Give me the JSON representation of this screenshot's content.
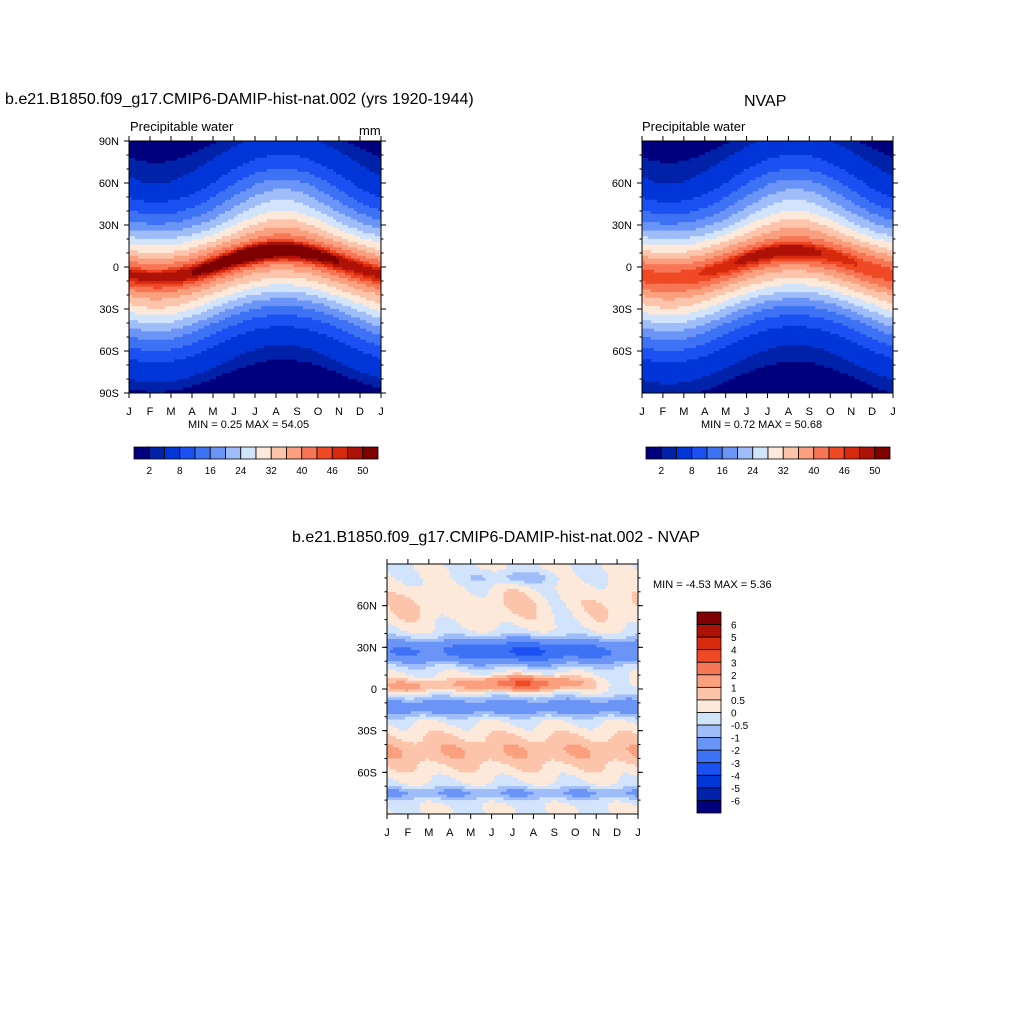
{
  "figure": {
    "panel1_title": "b.e21.B1850.f09_g17.CMIP6-DAMIP-hist-nat.002 (yrs 1920-1944)",
    "panel1_left_label": "Precipitable water",
    "panel1_right_label": "mm",
    "panel1_minmax": "MIN =   0.25 MAX =  54.05",
    "panel2_title": "NVAP",
    "panel2_left_label": "Precipitable water",
    "panel2_minmax": "MIN =   0.72 MAX =  50.68",
    "panel3_title": "b.e21.B1850.f09_g17.CMIP6-DAMIP-hist-nat.002 - NVAP",
    "panel3_minmax": "MIN =  -4.53 MAX =   5.36"
  },
  "colors": {
    "abs_scale": [
      "#00007f",
      "#0022a8",
      "#0035d8",
      "#1b50f2",
      "#3e72f5",
      "#6b94f7",
      "#9fbdf9",
      "#d2e3fc",
      "#fde9d9",
      "#fcc5ab",
      "#faa07f",
      "#f77656",
      "#ef4a25",
      "#d6290e",
      "#ae1206",
      "#7f0000"
    ],
    "diff_scale": [
      "#00007f",
      "#0022a8",
      "#0035d8",
      "#1b50f2",
      "#3e72f5",
      "#6b94f7",
      "#9fbdf9",
      "#d2e3fc",
      "#fde9d9",
      "#fcc5ab",
      "#faa07f",
      "#f77656",
      "#ef4a25",
      "#d6290e",
      "#ae1206",
      "#7f0000"
    ]
  },
  "chart_data": [
    {
      "type": "heatmap",
      "title": "b.e21.B1850.f09_g17.CMIP6-DAMIP-hist-nat.002 (yrs 1920-1944)",
      "subtitle": "Precipitable water",
      "units": "mm",
      "x_ticks": [
        "J",
        "F",
        "M",
        "A",
        "M",
        "J",
        "J",
        "A",
        "S",
        "O",
        "N",
        "D",
        "J"
      ],
      "y_ticks": [
        "90N",
        "60N",
        "30N",
        "0",
        "30S",
        "60S",
        "90S"
      ],
      "ylim": [
        -90,
        90
      ],
      "min": 0.25,
      "max": 54.05,
      "colorbar_labels": [
        "2",
        "8",
        "16",
        "24",
        "32",
        "40",
        "46",
        "50"
      ],
      "levels": [
        2,
        4,
        8,
        12,
        16,
        20,
        24,
        28,
        32,
        36,
        40,
        44,
        46,
        48,
        50
      ],
      "lat_profile": [
        [
          90,
          2
        ],
        [
          80,
          4
        ],
        [
          70,
          6
        ],
        [
          60,
          9
        ],
        [
          50,
          13
        ],
        [
          40,
          18
        ],
        [
          30,
          24
        ],
        [
          20,
          32
        ],
        [
          10,
          42
        ],
        [
          5,
          48
        ],
        [
          0,
          48
        ],
        [
          -5,
          44
        ],
        [
          -10,
          38
        ],
        [
          -20,
          30
        ],
        [
          -30,
          22
        ],
        [
          -40,
          15
        ],
        [
          -50,
          10
        ],
        [
          -60,
          6
        ],
        [
          -70,
          4
        ],
        [
          -80,
          1.5
        ],
        [
          -90,
          0.5
        ]
      ]
    },
    {
      "type": "heatmap",
      "title": "NVAP",
      "subtitle": "Precipitable water",
      "x_ticks": [
        "J",
        "F",
        "M",
        "A",
        "M",
        "J",
        "J",
        "A",
        "S",
        "O",
        "N",
        "D",
        "J"
      ],
      "y_ticks": [
        "60N",
        "30N",
        "0",
        "30S",
        "60S"
      ],
      "ylim": [
        -90,
        90
      ],
      "min": 0.72,
      "max": 50.68,
      "colorbar_labels": [
        "2",
        "8",
        "16",
        "24",
        "32",
        "40",
        "46",
        "50"
      ],
      "levels": [
        2,
        4,
        8,
        12,
        16,
        20,
        24,
        28,
        32,
        36,
        40,
        44,
        46,
        48,
        50
      ],
      "lat_profile": [
        [
          90,
          2
        ],
        [
          80,
          4
        ],
        [
          70,
          6
        ],
        [
          60,
          9
        ],
        [
          50,
          13
        ],
        [
          40,
          18
        ],
        [
          30,
          24
        ],
        [
          20,
          32
        ],
        [
          10,
          41
        ],
        [
          5,
          45
        ],
        [
          0,
          45
        ],
        [
          -5,
          43
        ],
        [
          -10,
          38
        ],
        [
          -20,
          30
        ],
        [
          -30,
          22
        ],
        [
          -40,
          15
        ],
        [
          -50,
          10
        ],
        [
          -60,
          6
        ],
        [
          -70,
          4
        ],
        [
          -80,
          2
        ],
        [
          -90,
          1
        ]
      ]
    },
    {
      "type": "heatmap",
      "title": "b.e21.B1850.f09_g17.CMIP6-DAMIP-hist-nat.002 - NVAP",
      "x_ticks": [
        "J",
        "F",
        "M",
        "A",
        "M",
        "J",
        "J",
        "A",
        "S",
        "O",
        "N",
        "D",
        "J"
      ],
      "y_ticks": [
        "60N",
        "30N",
        "0",
        "30S",
        "60S"
      ],
      "ylim": [
        -90,
        90
      ],
      "min": -4.53,
      "max": 5.36,
      "colorbar_labels": [
        "6",
        "5",
        "4",
        "3",
        "2",
        "1",
        "0.5",
        "0",
        "-0.5",
        "-1",
        "-2",
        "-3",
        "-4",
        "-5",
        "-6"
      ],
      "levels": [
        -6,
        -5,
        -4,
        -3,
        -2,
        -1,
        -0.5,
        0,
        0.5,
        1,
        2,
        3,
        4,
        5,
        6
      ]
    }
  ]
}
